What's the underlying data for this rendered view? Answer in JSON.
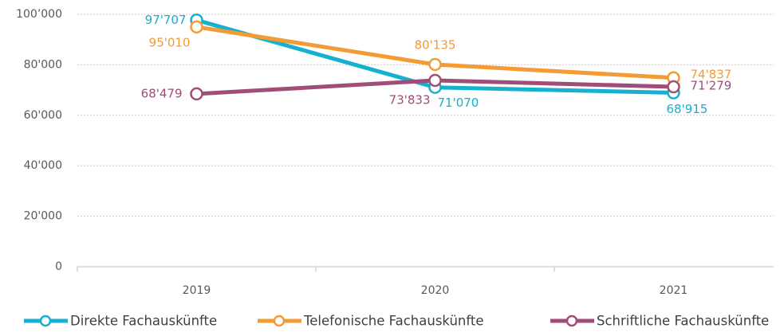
{
  "chart_data": {
    "type": "line",
    "categories": [
      "2019",
      "2020",
      "2021"
    ],
    "series": [
      {
        "name": "Direkte Fachauskünfte",
        "color": "#17b0cf",
        "values": [
          97707,
          71070,
          68915
        ],
        "value_labels": [
          "97'707",
          "71'070",
          "68'915"
        ]
      },
      {
        "name": "Telefonische Fachauskünfte",
        "color": "#f39b35",
        "values": [
          95010,
          80135,
          74837
        ],
        "value_labels": [
          "95'010",
          "80'135",
          "74'837"
        ]
      },
      {
        "name": "Schriftliche Fachauskünfte",
        "color": "#a04d77",
        "values": [
          68479,
          73833,
          71279
        ],
        "value_labels": [
          "68'479",
          "73'833",
          "71'279"
        ]
      }
    ],
    "ylim": [
      0,
      100000
    ],
    "yticks": [
      0,
      {
        "value": 20000,
        "label": "20'000"
      },
      {
        "value": 40000,
        "label": "40'000"
      },
      {
        "value": 60000,
        "label": "60'000"
      },
      {
        "value": 80000,
        "label": "80'000"
      },
      {
        "value": 100000,
        "label": "100’000"
      }
    ],
    "grid": true,
    "legend": "bottom"
  }
}
